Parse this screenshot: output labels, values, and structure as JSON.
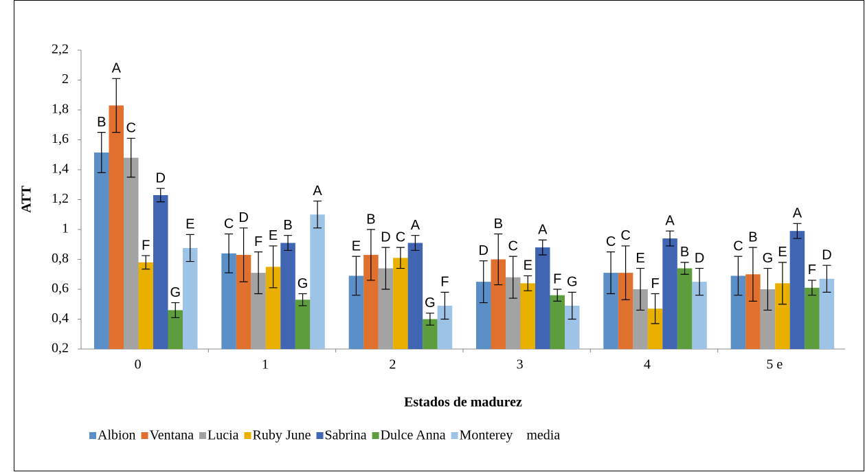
{
  "chart_data": {
    "type": "bar",
    "y_label": "ATT",
    "x_label": "Estados de madurez",
    "categories": [
      0,
      1,
      2,
      3,
      4,
      "5 e"
    ],
    "ylim": [
      0.2,
      2.2
    ],
    "yticks": [
      {
        "value": 0.2,
        "label": "0,2"
      },
      {
        "value": 0.4,
        "label": "0,4"
      },
      {
        "value": 0.6,
        "label": "0,6"
      },
      {
        "value": 0.8,
        "label": "0,8"
      },
      1,
      {
        "value": 1.2,
        "label": "1,2"
      },
      {
        "value": 1.4,
        "label": "1,4"
      },
      {
        "value": 1.6,
        "label": "1,6"
      },
      {
        "value": 1.8,
        "label": "1,8"
      },
      2,
      {
        "value": 2.2,
        "label": "2,2"
      }
    ],
    "series": [
      {
        "name": "Albion",
        "color": "#5a8fc8",
        "values": [
          1.515,
          0.84,
          0.69,
          0.65,
          0.71,
          0.69
        ],
        "errors": [
          0.135,
          0.13,
          0.13,
          0.14,
          0.14,
          0.13
        ],
        "letters": [
          "B",
          "C",
          "E",
          "D",
          "C",
          "C"
        ]
      },
      {
        "name": "Ventana",
        "color": "#e0702e",
        "values": [
          1.83,
          0.83,
          0.83,
          0.8,
          0.71,
          0.7
        ],
        "errors": [
          0.18,
          0.18,
          0.17,
          0.17,
          0.18,
          0.18
        ],
        "letters": [
          "A",
          "D",
          "B",
          "B",
          "C",
          "B"
        ]
      },
      {
        "name": "Lucia",
        "color": "#a3a3a3",
        "values": [
          1.48,
          0.71,
          0.74,
          0.68,
          0.6,
          0.6
        ],
        "errors": [
          0.13,
          0.14,
          0.14,
          0.14,
          0.14,
          0.14
        ],
        "letters": [
          "C",
          "F",
          "D",
          "C",
          "E",
          "G"
        ]
      },
      {
        "name": "Ruby June",
        "color": "#e9b000",
        "values": [
          0.78,
          0.75,
          0.81,
          0.64,
          0.47,
          0.64
        ],
        "errors": [
          0.045,
          0.14,
          0.07,
          0.05,
          0.1,
          0.14
        ],
        "letters": [
          "F",
          "E",
          "C",
          "E",
          "F",
          "E"
        ]
      },
      {
        "name": "Sabrina",
        "color": "#3f65b3",
        "values": [
          1.23,
          0.91,
          0.91,
          0.88,
          0.94,
          0.99
        ],
        "errors": [
          0.045,
          0.05,
          0.05,
          0.05,
          0.05,
          0.05
        ],
        "letters": [
          "D",
          "B",
          "A",
          "A",
          "A",
          "A"
        ]
      },
      {
        "name": "Dulce Anna",
        "color": "#5e9d3e",
        "values": [
          0.46,
          0.53,
          0.4,
          0.56,
          0.74,
          0.61
        ],
        "errors": [
          0.05,
          0.04,
          0.04,
          0.04,
          0.04,
          0.05
        ],
        "letters": [
          "G",
          "G",
          "G",
          "F",
          "B",
          "F"
        ]
      },
      {
        "name": "Monterey",
        "color": "#9dc3e6",
        "values": [
          0.876,
          1.1,
          0.49,
          0.49,
          0.65,
          0.67
        ],
        "errors": [
          0.09,
          0.09,
          0.09,
          0.09,
          0.09,
          0.09
        ],
        "letters": [
          "E",
          "A",
          "F",
          "G",
          "D",
          "D"
        ]
      },
      {
        "name": "media",
        "color": "#ffffff",
        "values": [
          null,
          null,
          null,
          null,
          null,
          null
        ]
      }
    ]
  }
}
